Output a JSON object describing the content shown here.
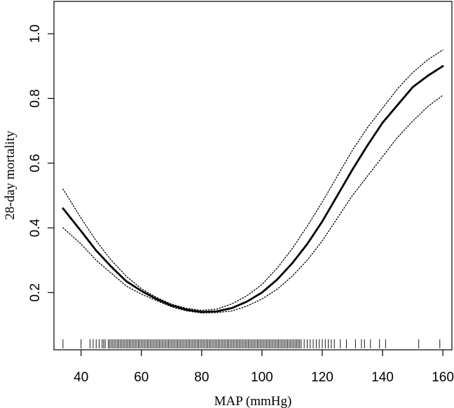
{
  "chart_data": {
    "type": "line",
    "title": "",
    "xlabel": "MAP (mmHg)",
    "ylabel": "28-day mortality",
    "xlim": [
      31,
      163
    ],
    "ylim": [
      0.023,
      1.1
    ],
    "xticks": [
      40,
      60,
      80,
      100,
      120,
      140,
      160
    ],
    "xtick_labels": [
      "40",
      "60",
      "80",
      "100",
      "120",
      "140",
      "160"
    ],
    "yticks": [
      0.2,
      0.4,
      0.6,
      0.8,
      1.0
    ],
    "ytick_labels": [
      "0.2",
      "0.4",
      "0.6",
      "0.8",
      "1.0"
    ],
    "grid": false,
    "legend": "none",
    "series": [
      {
        "style": "solid",
        "x": [
          34,
          40,
          45,
          50,
          55,
          60,
          65,
          70,
          75,
          80,
          85,
          90,
          95,
          100,
          105,
          110,
          115,
          120,
          125,
          130,
          135,
          140,
          145,
          150,
          155,
          160
        ],
        "y": [
          0.46,
          0.39,
          0.33,
          0.28,
          0.235,
          0.205,
          0.18,
          0.16,
          0.147,
          0.14,
          0.142,
          0.152,
          0.172,
          0.2,
          0.24,
          0.29,
          0.35,
          0.42,
          0.5,
          0.58,
          0.655,
          0.725,
          0.78,
          0.835,
          0.87,
          0.9
        ]
      },
      {
        "style": "dotted",
        "x": [
          34,
          40,
          45,
          50,
          55,
          60,
          65,
          70,
          75,
          80,
          85,
          90,
          95,
          100,
          105,
          110,
          115,
          120,
          125,
          130,
          135,
          140,
          145,
          150,
          155,
          160
        ],
        "y": [
          0.52,
          0.43,
          0.36,
          0.3,
          0.25,
          0.212,
          0.185,
          0.164,
          0.151,
          0.145,
          0.149,
          0.165,
          0.19,
          0.225,
          0.275,
          0.335,
          0.405,
          0.48,
          0.56,
          0.64,
          0.71,
          0.77,
          0.83,
          0.88,
          0.92,
          0.95
        ]
      },
      {
        "style": "dotted",
        "x": [
          34,
          40,
          45,
          50,
          55,
          60,
          65,
          70,
          75,
          80,
          85,
          90,
          95,
          100,
          105,
          110,
          115,
          120,
          125,
          130,
          135,
          140,
          145,
          150,
          155,
          160
        ],
        "y": [
          0.4,
          0.35,
          0.3,
          0.26,
          0.22,
          0.195,
          0.175,
          0.156,
          0.143,
          0.137,
          0.138,
          0.143,
          0.158,
          0.18,
          0.21,
          0.25,
          0.3,
          0.36,
          0.43,
          0.5,
          0.56,
          0.62,
          0.68,
          0.73,
          0.775,
          0.81
        ]
      }
    ],
    "rug": [
      34,
      40,
      43,
      44,
      45,
      46,
      47,
      47.5,
      48,
      49,
      49.5,
      50,
      50.5,
      51,
      51.5,
      52,
      52.5,
      53,
      53.5,
      54,
      54.5,
      55,
      55.5,
      56,
      56.5,
      57,
      57.5,
      58,
      58.5,
      59,
      59.5,
      60,
      60.5,
      61,
      61.5,
      62,
      62.5,
      63,
      63.5,
      64,
      64.5,
      65,
      65.5,
      66,
      66.5,
      67,
      67.5,
      68,
      68.5,
      69,
      69.5,
      70,
      70.5,
      71,
      71.5,
      72,
      72.5,
      73,
      73.5,
      74,
      74.5,
      75,
      75.5,
      76,
      76.5,
      77,
      77.5,
      78,
      78.5,
      79,
      79.5,
      80,
      80.5,
      81,
      81.5,
      82,
      82.5,
      83,
      83.5,
      84,
      84.5,
      85,
      85.5,
      86,
      86.5,
      87,
      87.5,
      88,
      88.5,
      89,
      89.5,
      90,
      90.5,
      91,
      91.5,
      92,
      92.5,
      93,
      93.5,
      94,
      94.5,
      95,
      95.5,
      96,
      96.5,
      97,
      97.5,
      98,
      98.5,
      99,
      99.5,
      100,
      100.5,
      101,
      101.5,
      102,
      102.5,
      103,
      103.5,
      104,
      104.5,
      105,
      105.5,
      106,
      106.5,
      107,
      107.5,
      108,
      108.5,
      109,
      109.5,
      110,
      110.5,
      111,
      111.5,
      112,
      112.5,
      113,
      114,
      115,
      116,
      117,
      118,
      119,
      120,
      121,
      122,
      123,
      124,
      126,
      128,
      131,
      133,
      134,
      136,
      139,
      141,
      152,
      159
    ]
  }
}
